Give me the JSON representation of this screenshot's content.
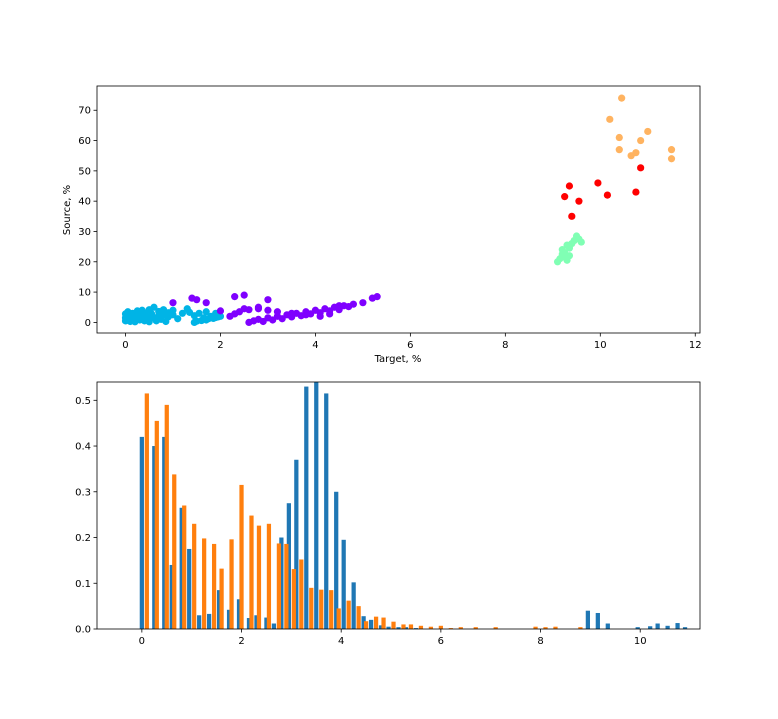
{
  "chart_data": [
    {
      "type": "scatter",
      "title": "",
      "xlabel": "Target, %",
      "ylabel": "Source, %",
      "xlim": [
        -0.6,
        12.1
      ],
      "ylim": [
        -3.5,
        78
      ],
      "xticks": [
        0,
        2,
        4,
        6,
        8,
        10,
        12
      ],
      "yticks": [
        0,
        10,
        20,
        30,
        40,
        50,
        60,
        70
      ],
      "grid": false,
      "legend": "none",
      "series": [
        {
          "color": "#00b4e6",
          "points": [
            [
              0.0,
              0.5
            ],
            [
              0.0,
              1.5
            ],
            [
              0.0,
              2.8
            ],
            [
              0.05,
              3.5
            ],
            [
              0.1,
              0.3
            ],
            [
              0.1,
              2.0
            ],
            [
              0.15,
              1.0
            ],
            [
              0.15,
              3.0
            ],
            [
              0.2,
              0.2
            ],
            [
              0.2,
              1.8
            ],
            [
              0.25,
              3.8
            ],
            [
              0.3,
              0.8
            ],
            [
              0.3,
              2.5
            ],
            [
              0.35,
              1.5
            ],
            [
              0.35,
              4.0
            ],
            [
              0.4,
              0.5
            ],
            [
              0.4,
              3.0
            ],
            [
              0.45,
              2.0
            ],
            [
              0.5,
              0.2
            ],
            [
              0.5,
              1.2
            ],
            [
              0.5,
              4.2
            ],
            [
              0.55,
              2.8
            ],
            [
              0.6,
              1.5
            ],
            [
              0.6,
              5.0
            ],
            [
              0.65,
              0.5
            ],
            [
              0.7,
              2.2
            ],
            [
              0.7,
              3.6
            ],
            [
              0.75,
              1.0
            ],
            [
              0.8,
              4.2
            ],
            [
              0.8,
              2.5
            ],
            [
              0.85,
              0.3
            ],
            [
              0.9,
              1.8
            ],
            [
              0.9,
              3.2
            ],
            [
              1.0,
              2.5
            ],
            [
              1.0,
              4.0
            ],
            [
              1.1,
              1.2
            ],
            [
              1.2,
              3.0
            ],
            [
              1.3,
              4.5
            ],
            [
              1.35,
              3.3
            ],
            [
              1.45,
              2.2
            ],
            [
              1.55,
              3.0
            ],
            [
              1.65,
              1.5
            ],
            [
              1.7,
              3.5
            ],
            [
              1.8,
              2.0
            ],
            [
              1.9,
              3.0
            ],
            [
              1.45,
              0.0
            ],
            [
              1.5,
              0.4
            ],
            [
              1.6,
              0.6
            ],
            [
              1.7,
              0.8
            ],
            [
              1.75,
              1.2
            ],
            [
              1.85,
              1.3
            ],
            [
              1.9,
              1.6
            ],
            [
              1.95,
              1.8
            ],
            [
              2.0,
              2.0
            ]
          ]
        },
        {
          "color": "#7f00ff",
          "points": [
            [
              2.6,
              0.0
            ],
            [
              2.7,
              0.5
            ],
            [
              2.8,
              1.0
            ],
            [
              2.9,
              0.3
            ],
            [
              3.0,
              1.5
            ],
            [
              3.1,
              0.8
            ],
            [
              3.2,
              2.0
            ],
            [
              3.3,
              1.2
            ],
            [
              3.4,
              2.5
            ],
            [
              3.5,
              1.8
            ],
            [
              3.6,
              3.0
            ],
            [
              3.7,
              2.2
            ],
            [
              3.8,
              3.5
            ],
            [
              3.9,
              2.8
            ],
            [
              4.0,
              4.0
            ],
            [
              4.1,
              3.2
            ],
            [
              4.2,
              4.5
            ],
            [
              4.3,
              3.8
            ],
            [
              4.4,
              5.0
            ],
            [
              4.5,
              4.2
            ],
            [
              4.6,
              5.5
            ],
            [
              4.7,
              5.2
            ],
            [
              4.8,
              6.0
            ],
            [
              5.0,
              6.5
            ],
            [
              5.2,
              8.0
            ],
            [
              5.3,
              8.5
            ],
            [
              2.2,
              2.0
            ],
            [
              2.3,
              2.8
            ],
            [
              2.4,
              3.5
            ],
            [
              2.5,
              4.5
            ],
            [
              2.6,
              4.2
            ],
            [
              2.8,
              5.0
            ],
            [
              3.0,
              4.0
            ],
            [
              3.2,
              3.5
            ],
            [
              3.5,
              3.0
            ],
            [
              3.8,
              2.5
            ],
            [
              4.1,
              2.0
            ],
            [
              4.3,
              2.8
            ],
            [
              1.0,
              6.5
            ],
            [
              1.4,
              8.0
            ],
            [
              1.5,
              7.5
            ],
            [
              1.7,
              6.5
            ],
            [
              2.3,
              8.5
            ],
            [
              2.5,
              9.0
            ],
            [
              3.0,
              7.5
            ],
            [
              2.8,
              4.5
            ],
            [
              2.0,
              3.8
            ],
            [
              4.5,
              5.5
            ]
          ]
        },
        {
          "color": "#80ffb4",
          "points": [
            [
              9.1,
              20.0
            ],
            [
              9.15,
              21.0
            ],
            [
              9.2,
              22.5
            ],
            [
              9.2,
              24.0
            ],
            [
              9.25,
              23.0
            ],
            [
              9.3,
              25.5
            ],
            [
              9.3,
              20.5
            ],
            [
              9.35,
              22.0
            ],
            [
              9.4,
              26.0
            ],
            [
              9.45,
              27.0
            ],
            [
              9.5,
              28.5
            ],
            [
              9.55,
              27.5
            ],
            [
              9.6,
              26.5
            ],
            [
              9.25,
              21.5
            ],
            [
              9.35,
              24.5
            ]
          ]
        },
        {
          "color": "#ff0000",
          "points": [
            [
              9.25,
              41.5
            ],
            [
              9.35,
              45.0
            ],
            [
              9.4,
              35.0
            ],
            [
              9.55,
              40.0
            ],
            [
              9.95,
              46.0
            ],
            [
              10.15,
              42.0
            ],
            [
              10.75,
              43.0
            ],
            [
              10.85,
              51.0
            ]
          ]
        },
        {
          "color": "#ffb360",
          "points": [
            [
              10.2,
              67.0
            ],
            [
              10.45,
              74.0
            ],
            [
              10.4,
              61.0
            ],
            [
              10.4,
              57.0
            ],
            [
              10.65,
              55.0
            ],
            [
              10.75,
              56.0
            ],
            [
              10.85,
              60.0
            ],
            [
              11.0,
              63.0
            ],
            [
              11.5,
              57.0
            ],
            [
              11.5,
              54.0
            ]
          ]
        }
      ]
    },
    {
      "type": "bar",
      "title": "",
      "xlabel": "",
      "ylabel": "",
      "xlim": [
        -0.9,
        11.2
      ],
      "ylim": [
        0,
        0.54
      ],
      "xticks": [
        0,
        2,
        4,
        6,
        8,
        10
      ],
      "yticks": [
        0.0,
        0.1,
        0.2,
        0.3,
        0.4,
        0.5
      ],
      "grid": false,
      "legend": "none",
      "bar_width": 0.085,
      "series": [
        {
          "color": "#1f77b4",
          "x": [
            0.0,
            0.25,
            0.45,
            0.6,
            0.8,
            0.95,
            1.15,
            1.35,
            1.55,
            1.75,
            1.95,
            2.15,
            2.3,
            2.5,
            2.65,
            2.8,
            2.95,
            3.1,
            3.3,
            3.5,
            3.7,
            3.9,
            4.05,
            4.25,
            4.45,
            4.6,
            4.8,
            4.95,
            5.15,
            5.3,
            5.5,
            8.95,
            9.15,
            9.35,
            9.95,
            10.2,
            10.35,
            10.55,
            10.75,
            10.9
          ],
          "values": [
            0.42,
            0.4,
            0.42,
            0.14,
            0.265,
            0.175,
            0.03,
            0.033,
            0.085,
            0.042,
            0.065,
            0.024,
            0.03,
            0.025,
            0.012,
            0.2,
            0.275,
            0.37,
            0.53,
            0.54,
            0.515,
            0.3,
            0.195,
            0.102,
            0.028,
            0.02,
            0.008,
            0.005,
            0.004,
            0.004,
            0.002,
            0.04,
            0.035,
            0.012,
            0.004,
            0.006,
            0.012,
            0.007,
            0.013,
            0.004
          ]
        },
        {
          "color": "#ff7f0e",
          "x": [
            0.1,
            0.3,
            0.5,
            0.65,
            0.85,
            1.05,
            1.25,
            1.45,
            1.6,
            1.8,
            2.0,
            2.2,
            2.35,
            2.55,
            2.75,
            2.9,
            3.05,
            3.2,
            3.4,
            3.6,
            3.8,
            3.95,
            4.15,
            4.35,
            4.5,
            4.7,
            4.85,
            5.05,
            5.25,
            5.4,
            5.6,
            5.8,
            6.0,
            6.2,
            6.4,
            6.7,
            7.1,
            7.9,
            8.1,
            8.3,
            8.8
          ],
          "values": [
            0.515,
            0.455,
            0.49,
            0.338,
            0.27,
            0.23,
            0.198,
            0.186,
            0.132,
            0.196,
            0.315,
            0.248,
            0.226,
            0.23,
            0.187,
            0.186,
            0.131,
            0.152,
            0.09,
            0.086,
            0.085,
            0.045,
            0.062,
            0.05,
            0.017,
            0.027,
            0.025,
            0.016,
            0.01,
            0.01,
            0.007,
            0.005,
            0.007,
            0.002,
            0.004,
            0.004,
            0.004,
            0.005,
            0.004,
            0.005,
            0.004
          ]
        }
      ]
    }
  ]
}
